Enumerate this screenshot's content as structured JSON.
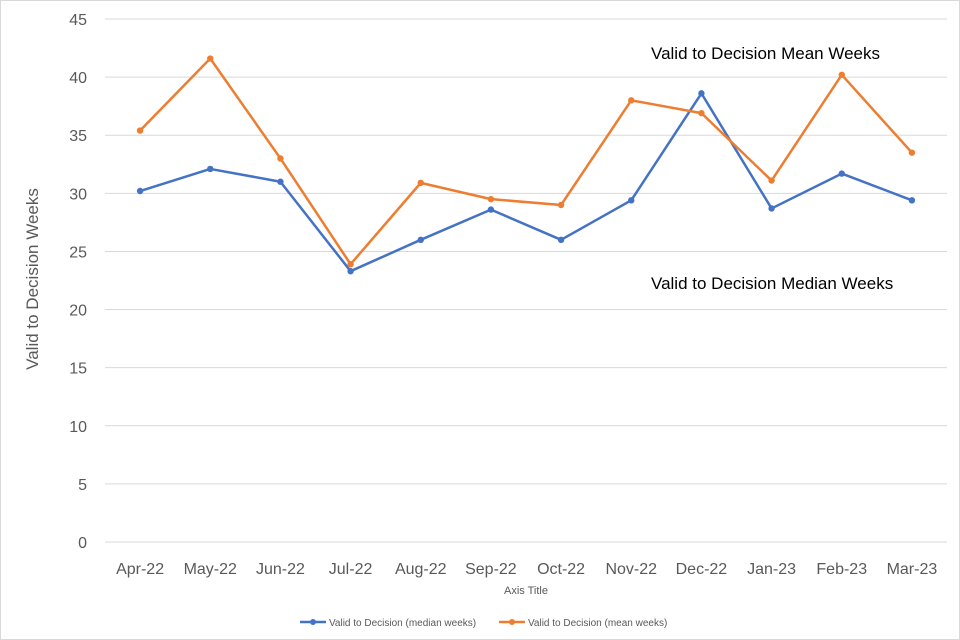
{
  "chart_data": {
    "type": "line",
    "title": "",
    "xlabel": "Axis Title",
    "ylabel": "Valid to Decision Weeks",
    "ylim": [
      0,
      45
    ],
    "yticks": [
      0,
      5,
      10,
      15,
      20,
      25,
      30,
      35,
      40,
      45
    ],
    "grid": true,
    "legend_position": "bottom",
    "categories": [
      "Apr-22",
      "May-22",
      "Jun-22",
      "Jul-22",
      "Aug-22",
      "Sep-22",
      "Oct-22",
      "Nov-22",
      "Dec-22",
      "Jan-23",
      "Feb-23",
      "Mar-23"
    ],
    "series": [
      {
        "name": "Valid to Decision (median weeks)",
        "color": "#4472C4",
        "values": [
          30.2,
          32.1,
          31.0,
          23.3,
          26.0,
          28.6,
          26.0,
          29.4,
          38.6,
          28.7,
          31.7,
          29.4
        ]
      },
      {
        "name": "Valid to Decision (mean weeks)",
        "color": "#ED7D31",
        "values": [
          35.4,
          41.6,
          33.0,
          23.9,
          30.9,
          29.5,
          29.0,
          38.0,
          36.9,
          31.1,
          40.2,
          33.5
        ]
      }
    ],
    "annotations": [
      "Valid to Decision  Mean Weeks",
      "Valid to Decision  Median Weeks"
    ]
  }
}
